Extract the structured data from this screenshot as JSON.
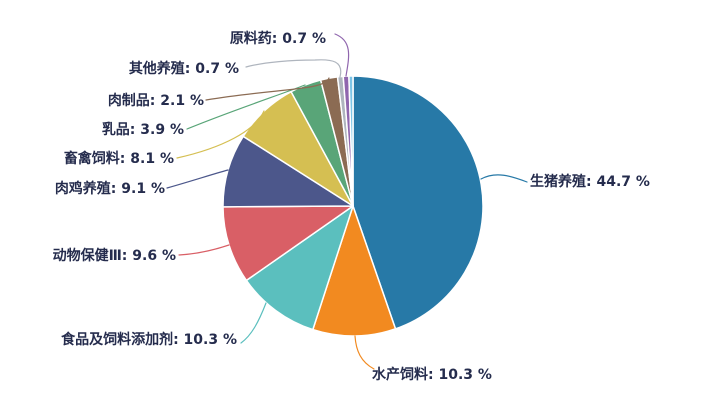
{
  "page": {
    "background_color": "#FFFFFF",
    "label_text_color": "#252C4D"
  },
  "chart_data": {
    "type": "pie",
    "title": "",
    "legend_position": "none",
    "label_format": "{name}: {value} %",
    "unit": "%",
    "slices": [
      {
        "id": "pig-farming",
        "label": "生猪养殖",
        "value": 44.7,
        "color": "#2779A7",
        "display_label": "生猪养殖: 44.7 %"
      },
      {
        "id": "aquatic-feed",
        "label": "水产饲料",
        "value": 10.3,
        "color": "#F28A20",
        "display_label": "水产饲料: 10.3 %"
      },
      {
        "id": "food-feed-additives",
        "label": "食品及饲料添加剂",
        "value": 10.3,
        "color": "#5BBFBE",
        "display_label": "食品及饲料添加剂: 10.3 %"
      },
      {
        "id": "animal-health",
        "label": "动物保健Ⅲ",
        "value": 9.6,
        "color": "#D95F66",
        "display_label": "动物保健Ⅲ: 9.6 %"
      },
      {
        "id": "broiler-farming",
        "label": "肉鸡养殖",
        "value": 9.1,
        "color": "#4C578B",
        "display_label": "肉鸡养殖: 9.1 %"
      },
      {
        "id": "livestock-poultry-feed",
        "label": "畜禽饲料",
        "value": 8.1,
        "color": "#D5BF52",
        "display_label": "畜禽饲料: 8.1 %"
      },
      {
        "id": "dairy",
        "label": "乳品",
        "value": 3.9,
        "color": "#59A578",
        "display_label": "乳品: 3.9 %"
      },
      {
        "id": "meat-products",
        "label": "肉制品",
        "value": 2.1,
        "color": "#8B6B53",
        "display_label": "肉制品: 2.1 %"
      },
      {
        "id": "other-farming",
        "label": "其他养殖",
        "value": 0.7,
        "color": "#AFB5BE",
        "display_label": "其他养殖: 0.7 %"
      },
      {
        "id": "api-pharma",
        "label": "原料药",
        "value": 0.7,
        "color": "#9066AE",
        "display_label": "原料药: 0.7 %"
      },
      {
        "id": "unlabeled-remainder",
        "label": "",
        "value": 0.5,
        "color": "#7CC4E6",
        "display_label": ""
      }
    ]
  }
}
